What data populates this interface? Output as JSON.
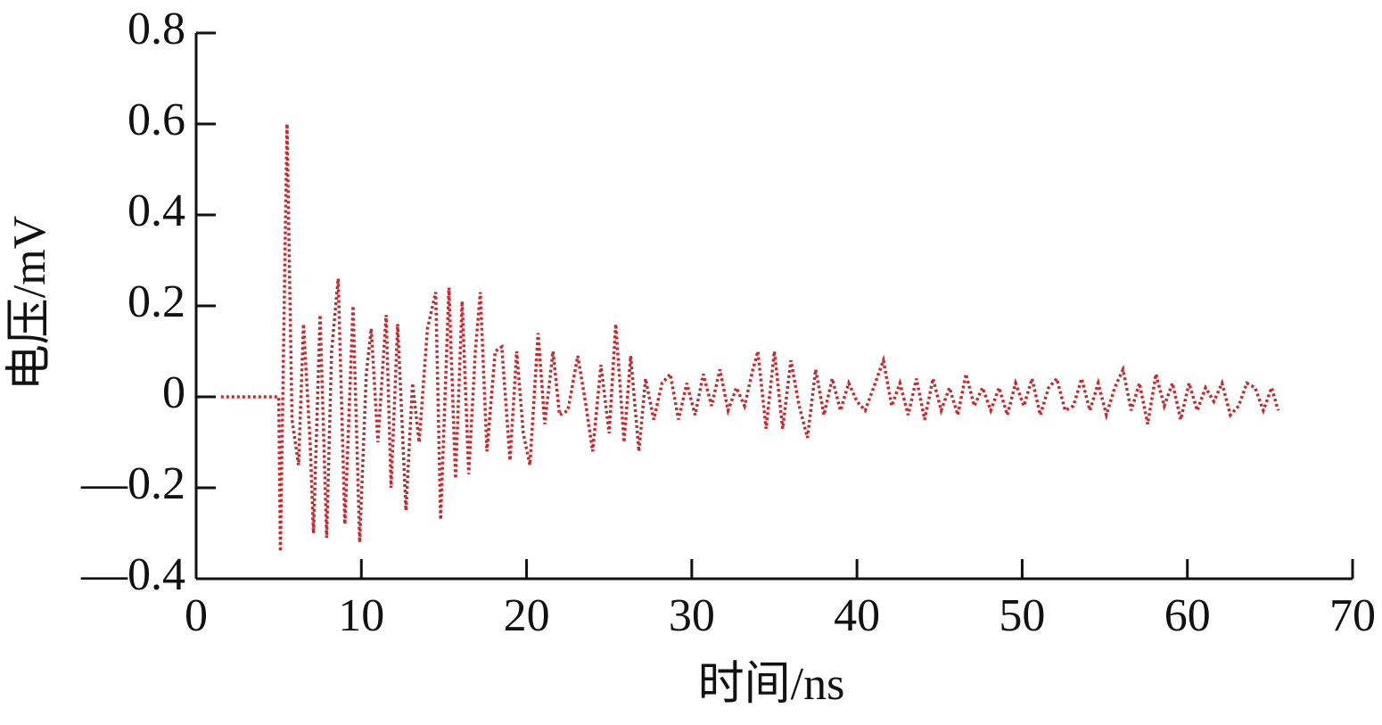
{
  "chart_data": {
    "type": "line",
    "xlabel": "时间/ns",
    "ylabel": "电压/mV",
    "color": "#c8282d",
    "line_style": "dotted",
    "xlim": [
      0,
      70
    ],
    "xticks": [
      0,
      10,
      20,
      30,
      40,
      50,
      60,
      70
    ],
    "ylim": [
      -0.4,
      0.8
    ],
    "yticks": [
      {
        "value": -0.4,
        "label": "—0.4"
      },
      {
        "value": -0.2,
        "label": "—0.2"
      },
      0,
      0.2,
      0.4,
      0.6,
      0.8
    ],
    "x": [
      1.5,
      5.0,
      5.1,
      5.5,
      5.8,
      6.2,
      6.5,
      6.9,
      7.1,
      7.5,
      7.9,
      8.2,
      8.6,
      9.0,
      9.5,
      9.9,
      10.3,
      10.6,
      11.0,
      11.5,
      11.8,
      12.2,
      12.7,
      13.1,
      13.5,
      14.0,
      14.5,
      14.8,
      15.3,
      15.7,
      16.1,
      16.5,
      16.9,
      17.2,
      17.6,
      18.1,
      18.5,
      19.0,
      19.4,
      19.8,
      20.2,
      20.7,
      21.1,
      21.6,
      22.0,
      22.5,
      23.1,
      23.6,
      24.0,
      24.5,
      25.0,
      25.4,
      25.9,
      26.3,
      26.8,
      27.2,
      27.7,
      28.2,
      28.7,
      29.2,
      29.7,
      30.2,
      30.7,
      31.2,
      31.7,
      32.2,
      32.7,
      33.2,
      33.7,
      34.0,
      34.5,
      35.0,
      35.5,
      36.0,
      36.5,
      37.0,
      37.5,
      38.0,
      38.5,
      39.0,
      39.5,
      40.0,
      40.5,
      41.0,
      41.6,
      42.1,
      42.6,
      43.1,
      43.6,
      44.1,
      44.6,
      45.1,
      45.6,
      46.1,
      46.6,
      47.1,
      47.6,
      48.1,
      48.6,
      49.1,
      49.6,
      50.1,
      50.6,
      51.1,
      51.6,
      52.1,
      52.6,
      53.1,
      53.6,
      54.1,
      54.6,
      55.1,
      55.6,
      56.1,
      56.6,
      57.1,
      57.6,
      58.1,
      58.6,
      59.1,
      59.6,
      60.1,
      60.6,
      61.1,
      61.6,
      62.1,
      62.6,
      63.1,
      63.6,
      64.1,
      64.6,
      65.1,
      65.5
    ],
    "values": [
      0,
      0,
      -0.34,
      0.6,
      -0.05,
      -0.15,
      0.16,
      -0.1,
      -0.3,
      0.18,
      -0.31,
      0.1,
      0.26,
      -0.28,
      0.2,
      -0.32,
      0.05,
      0.15,
      -0.1,
      0.18,
      -0.2,
      0.16,
      -0.25,
      0.03,
      -0.1,
      0.15,
      0.23,
      -0.27,
      0.24,
      -0.18,
      0.21,
      -0.17,
      0.1,
      0.23,
      -0.12,
      0.1,
      0.11,
      -0.14,
      0.1,
      -0.08,
      -0.15,
      0.14,
      -0.06,
      0.1,
      -0.04,
      -0.03,
      0.09,
      -0.02,
      -0.12,
      0.07,
      -0.08,
      0.16,
      -0.1,
      0.09,
      -0.12,
      0.04,
      -0.05,
      0.03,
      0.05,
      -0.05,
      0.03,
      -0.04,
      0.05,
      -0.02,
      0.06,
      -0.03,
      0.02,
      -0.02,
      0.06,
      0.1,
      -0.07,
      0.1,
      -0.07,
      0.08,
      -0.02,
      -0.09,
      0.06,
      -0.04,
      0.04,
      -0.03,
      0.03,
      -0.01,
      -0.03,
      0.02,
      0.08,
      -0.02,
      0.03,
      -0.04,
      0.04,
      -0.05,
      0.04,
      -0.03,
      0.02,
      -0.04,
      0.05,
      -0.02,
      0.02,
      -0.03,
      0.02,
      -0.04,
      0.03,
      -0.02,
      0.04,
      -0.04,
      0.02,
      0.04,
      -0.03,
      -0.02,
      0.04,
      -0.03,
      0.03,
      -0.04,
      0.02,
      0.06,
      -0.03,
      0.03,
      -0.06,
      0.05,
      -0.02,
      0.03,
      -0.05,
      0.03,
      -0.03,
      0.02,
      -0.01,
      0.03,
      -0.04,
      -0.02,
      0.03,
      0.02,
      -0.03,
      0.02,
      -0.03
    ]
  }
}
